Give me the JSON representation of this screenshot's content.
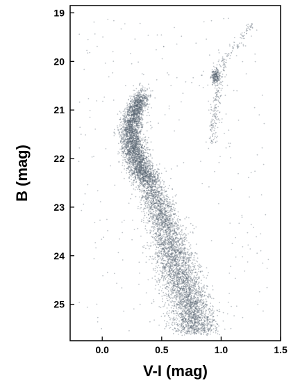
{
  "chart_data": {
    "type": "scatter",
    "title": "",
    "xlabel": "V-I (mag)",
    "ylabel": "B (mag)",
    "xlim": [
      -0.27,
      1.5
    ],
    "ylim": [
      25.75,
      18.85
    ],
    "y_inverted": true,
    "grid": false,
    "legend": "none",
    "xticks": [
      0.0,
      0.5,
      1.0,
      1.5
    ],
    "xtick_labels": [
      "0.0",
      "0.5",
      "1.0",
      "1.5"
    ],
    "yticks": [
      19,
      20,
      21,
      22,
      23,
      24,
      25
    ],
    "ytick_labels": [
      "19",
      "20",
      "21",
      "22",
      "23",
      "24",
      "25"
    ],
    "point_color": "#54616e",
    "point_count_estimate": 9000,
    "features": [
      {
        "name": "main-sequence ridge",
        "points": [
          [
            0.34,
            20.6
          ],
          [
            0.28,
            21.0
          ],
          [
            0.24,
            21.4
          ],
          [
            0.26,
            21.8
          ],
          [
            0.35,
            22.3
          ],
          [
            0.44,
            22.8
          ],
          [
            0.52,
            23.3
          ],
          [
            0.58,
            23.8
          ],
          [
            0.64,
            24.3
          ],
          [
            0.7,
            24.8
          ],
          [
            0.78,
            25.3
          ]
        ]
      },
      {
        "name": "red clump",
        "points": [
          [
            0.95,
            20.3
          ]
        ]
      },
      {
        "name": "red giant branch",
        "points": [
          [
            0.93,
            21.5
          ],
          [
            0.95,
            20.9
          ],
          [
            1.02,
            20.0
          ],
          [
            1.12,
            19.7
          ],
          [
            1.24,
            19.3
          ]
        ]
      }
    ]
  }
}
